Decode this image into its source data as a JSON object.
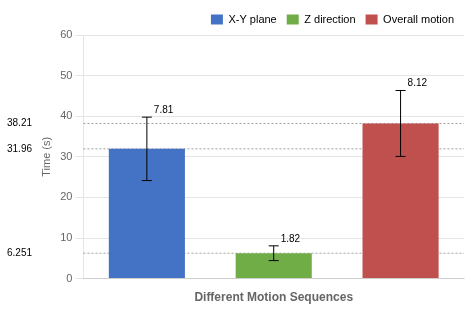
{
  "chart_data": {
    "type": "bar",
    "categories": [
      "X-Y plane",
      "Z direction",
      "Overall motion"
    ],
    "values": [
      31.96,
      6.251,
      38.21
    ],
    "errors": [
      7.81,
      1.82,
      8.12
    ],
    "colors": [
      "#4472C4",
      "#70AD47",
      "#C0504D"
    ],
    "reference_lines": [
      31.96,
      6.251,
      38.21
    ],
    "xlabel": "Different Motion Sequences",
    "ylabel": "Time (s)",
    "ylim": [
      0,
      60
    ],
    "yticks": [
      0,
      10,
      20,
      30,
      40,
      50,
      60
    ],
    "grid": true,
    "legend": "upper right",
    "tick_labels": "y"
  }
}
